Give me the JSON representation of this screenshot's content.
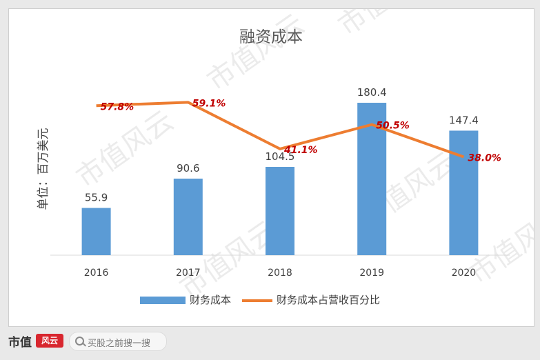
{
  "chart_data": {
    "type": "bar+line",
    "title": "融资成本",
    "ylabel": "单位：百万美元",
    "categories": [
      "2016",
      "2017",
      "2018",
      "2019",
      "2020"
    ],
    "series": [
      {
        "name": "财务成本",
        "type": "bar",
        "values": [
          55.9,
          90.6,
          104.5,
          180.4,
          147.4
        ],
        "labels": [
          "55.9",
          "90.6",
          "104.5",
          "180.4",
          "147.4"
        ],
        "color": "#5b9bd5"
      },
      {
        "name": "财务成本占营收百分比",
        "type": "line",
        "values": [
          57.8,
          59.1,
          41.1,
          50.5,
          38.0
        ],
        "labels": [
          "57.8%",
          "59.1%",
          "41.1%",
          "50.5%",
          "38.0%"
        ],
        "color": "#ed7d31",
        "label_color": "#c00000"
      }
    ],
    "ylim_bar": [
      0,
      200
    ],
    "ylim_line": [
      0,
      80
    ],
    "grid": false,
    "legend_position": "bottom"
  },
  "watermark": "市值风云",
  "footer": {
    "brand": "市值",
    "brand_mark": "风云",
    "search_placeholder": "买股之前搜一搜"
  }
}
